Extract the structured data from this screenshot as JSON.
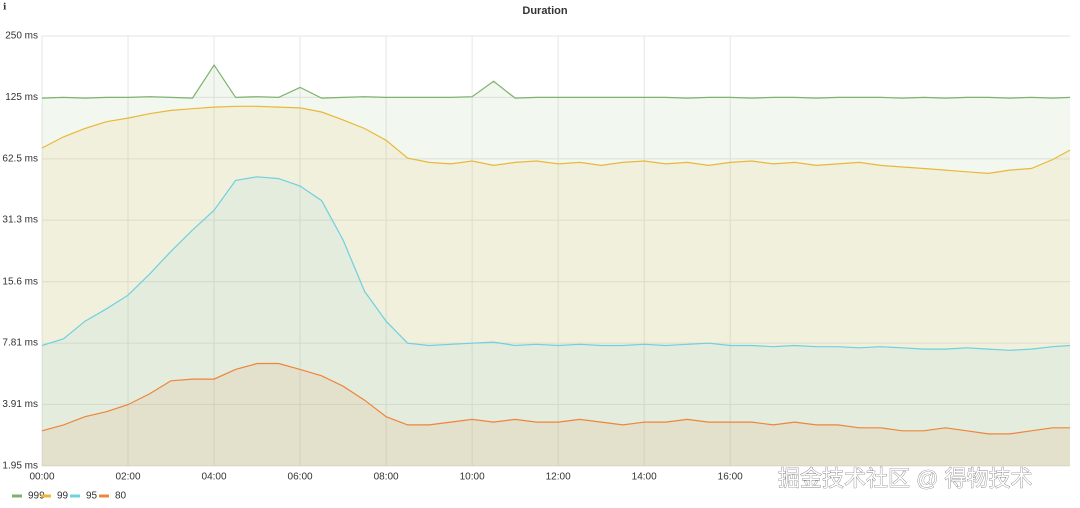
{
  "info_icon": "ℹ",
  "watermark": "掘金技术社区 @ 得物技术",
  "chart_data": {
    "type": "line",
    "title": "Duration",
    "log_base": 2,
    "grid": true,
    "fill_area": true,
    "legend_position": "bottom-left",
    "x": [
      0,
      0.5,
      1,
      1.5,
      2,
      2.5,
      3,
      3.5,
      4,
      4.5,
      5,
      5.5,
      6,
      6.5,
      7,
      7.5,
      8,
      8.5,
      9,
      9.5,
      10,
      10.5,
      11,
      11.5,
      12,
      12.5,
      13,
      13.5,
      14,
      14.5,
      15,
      15.5,
      16,
      16.5,
      17,
      17.5,
      18,
      18.5,
      19,
      19.5,
      20,
      20.5,
      21,
      21.5,
      22,
      22.5,
      23,
      23.5,
      23.9
    ],
    "xlim": [
      0,
      23.9
    ],
    "xticks": [
      {
        "value": 0,
        "label": "00:00"
      },
      {
        "value": 2,
        "label": "02:00"
      },
      {
        "value": 4,
        "label": "04:00"
      },
      {
        "value": 6,
        "label": "06:00"
      },
      {
        "value": 8,
        "label": "08:00"
      },
      {
        "value": 10,
        "label": "10:00"
      },
      {
        "value": 12,
        "label": "12:00"
      },
      {
        "value": 14,
        "label": "14:00"
      },
      {
        "value": 16,
        "label": "16:00"
      }
    ],
    "ylim": [
      1.95,
      250
    ],
    "yticks": [
      {
        "value": 1.95,
        "label": "1.95 ms"
      },
      {
        "value": 3.91,
        "label": "3.91 ms"
      },
      {
        "value": 7.81,
        "label": "7.81 ms"
      },
      {
        "value": 15.6,
        "label": "15.6 ms"
      },
      {
        "value": 31.3,
        "label": "31.3 ms"
      },
      {
        "value": 62.5,
        "label": "62.5 ms"
      },
      {
        "value": 125,
        "label": "125 ms"
      },
      {
        "value": 250,
        "label": "250 ms"
      }
    ],
    "series": [
      {
        "name": "999",
        "color": "#7eb26d",
        "values": [
          124,
          125,
          124,
          125,
          125,
          126,
          125,
          124,
          180,
          125,
          126,
          125,
          140,
          124,
          125,
          126,
          125,
          125,
          125,
          125,
          126,
          150,
          124,
          125,
          125,
          125,
          125,
          125,
          125,
          125,
          124,
          125,
          125,
          124,
          125,
          125,
          124,
          125,
          125,
          125,
          124,
          125,
          124,
          125,
          125,
          124,
          125,
          124,
          125
        ]
      },
      {
        "name": "99",
        "color": "#eab839",
        "values": [
          70.6,
          80,
          88,
          95,
          99,
          104,
          108,
          110,
          112,
          113,
          113,
          112,
          111,
          106,
          97,
          88,
          77,
          63,
          60,
          59,
          61,
          58,
          60,
          61,
          59,
          60,
          58,
          60,
          61,
          59,
          60,
          58,
          60,
          61,
          59,
          60,
          58,
          59,
          60,
          58,
          57,
          56,
          55,
          54,
          53,
          55,
          56,
          62,
          69
        ]
      },
      {
        "name": "95",
        "color": "#6ed0e0",
        "values": [
          7.6,
          8.2,
          10,
          11.5,
          13.4,
          17,
          22,
          28,
          35,
          49,
          51,
          50,
          46,
          39,
          25,
          14,
          10,
          7.8,
          7.6,
          7.7,
          7.8,
          7.9,
          7.6,
          7.7,
          7.6,
          7.7,
          7.6,
          7.6,
          7.7,
          7.6,
          7.7,
          7.8,
          7.6,
          7.6,
          7.5,
          7.6,
          7.5,
          7.5,
          7.4,
          7.5,
          7.4,
          7.3,
          7.3,
          7.4,
          7.3,
          7.2,
          7.3,
          7.5,
          7.6
        ]
      },
      {
        "name": "80",
        "color": "#ef843c",
        "values": [
          2.9,
          3.1,
          3.4,
          3.6,
          3.9,
          4.4,
          5.1,
          5.2,
          5.2,
          5.8,
          6.2,
          6.2,
          5.8,
          5.4,
          4.8,
          4.1,
          3.4,
          3.1,
          3.1,
          3.2,
          3.3,
          3.2,
          3.3,
          3.2,
          3.2,
          3.3,
          3.2,
          3.1,
          3.2,
          3.2,
          3.3,
          3.2,
          3.2,
          3.2,
          3.1,
          3.2,
          3.1,
          3.1,
          3.0,
          3.0,
          2.9,
          2.9,
          3.0,
          2.9,
          2.8,
          2.8,
          2.9,
          3.0,
          3.0
        ]
      }
    ]
  }
}
